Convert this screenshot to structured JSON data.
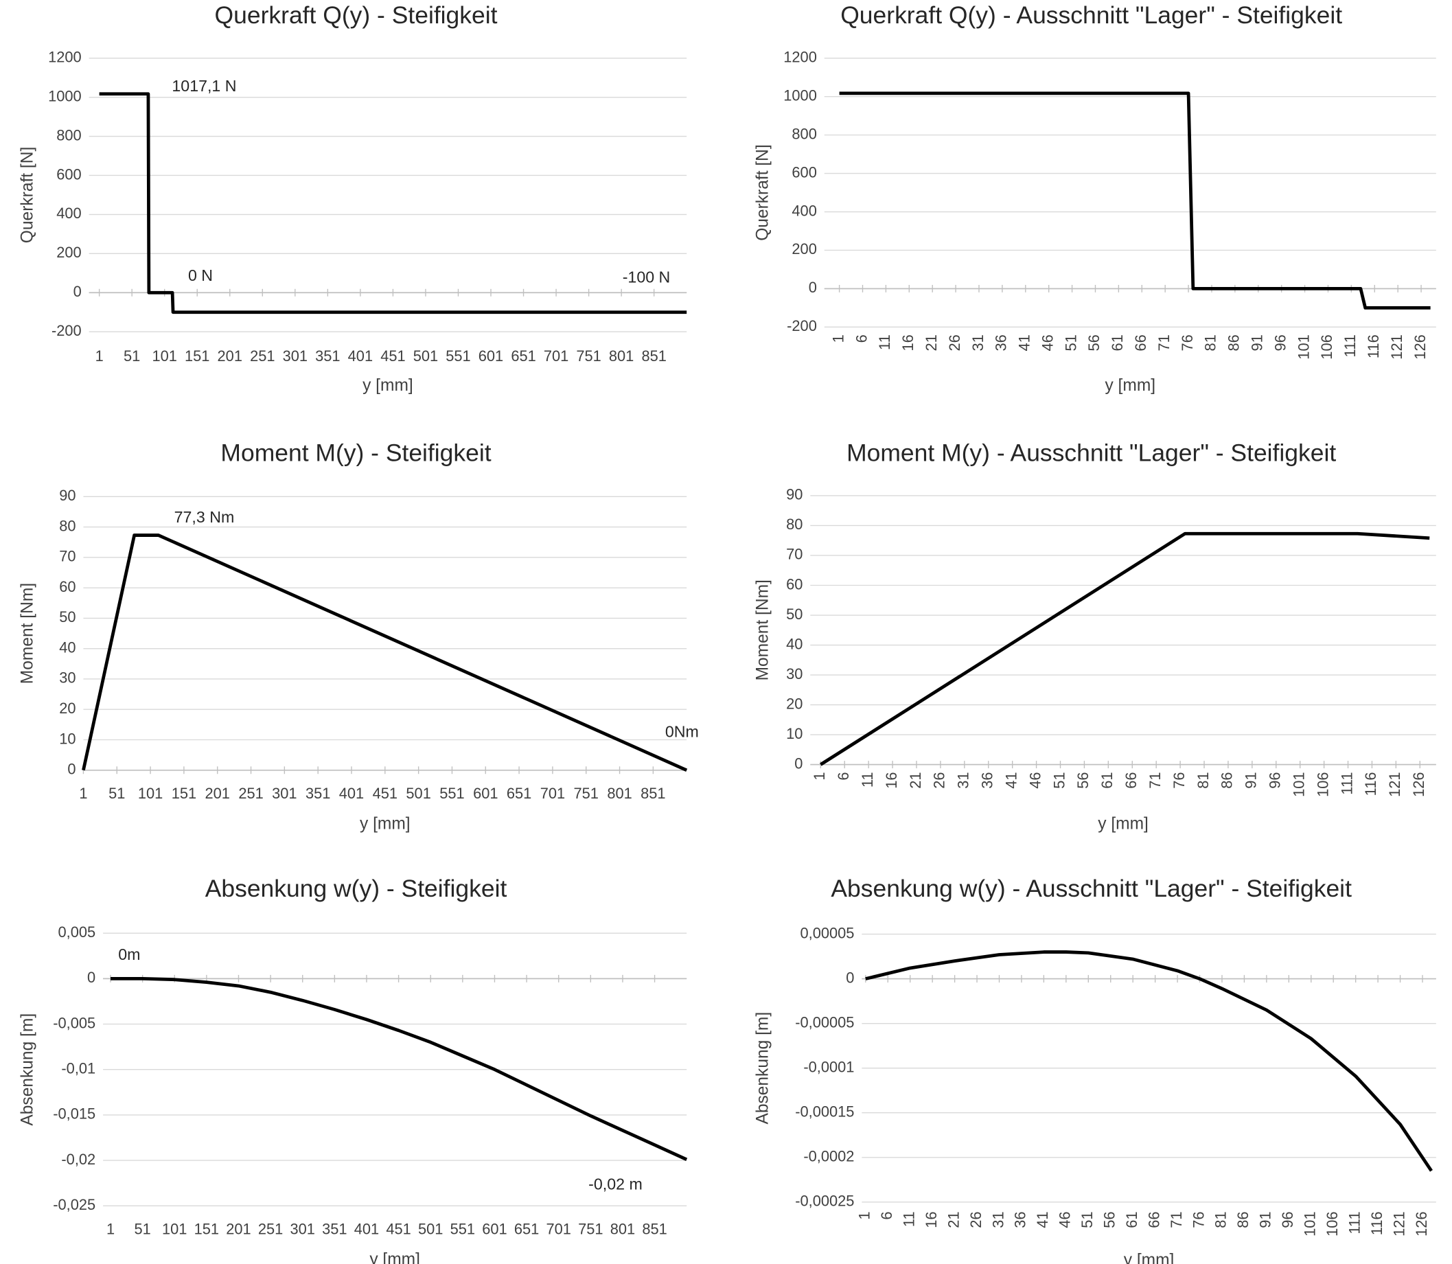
{
  "chart_data": [
    {
      "type": "line",
      "title": "Querkraft Q(y) - Steifigkeit",
      "x_label": "y [mm]",
      "y_label": "Querkraft [N]",
      "x": [
        1,
        76,
        77,
        113,
        114,
        901
      ],
      "values": [
        1017.1,
        1017.1,
        0,
        0,
        -100,
        -100
      ],
      "color": "#000000",
      "xlim": [
        1,
        901
      ],
      "xticks": [
        1,
        51,
        101,
        151,
        201,
        251,
        301,
        351,
        401,
        451,
        501,
        551,
        601,
        651,
        701,
        751,
        801,
        851
      ],
      "ylim": [
        -200,
        1200
      ],
      "yticks": [
        -200,
        0,
        200,
        400,
        600,
        800,
        1000,
        1200
      ],
      "grid": true,
      "annotations": [
        "1017,1 N",
        "0 N",
        "-100 N"
      ]
    },
    {
      "type": "line",
      "title": "Querkraft Q(y) - Ausschnitt \"Lager\" - Steifigkeit",
      "x_label": "y [mm]",
      "y_label": "Querkraft [N]",
      "x": [
        1,
        76,
        77,
        113,
        114,
        128
      ],
      "values": [
        1017.1,
        1017.1,
        0,
        0,
        -100,
        -100
      ],
      "color": "#000000",
      "xlim": [
        1,
        128
      ],
      "xticks": [
        1,
        6,
        11,
        16,
        21,
        26,
        31,
        36,
        41,
        46,
        51,
        56,
        61,
        66,
        71,
        76,
        81,
        86,
        91,
        96,
        101,
        106,
        111,
        116,
        121,
        126
      ],
      "ylim": [
        -200,
        1200
      ],
      "yticks": [
        -200,
        0,
        200,
        400,
        600,
        800,
        1000,
        1200
      ],
      "grid": true,
      "rotate_x_labels": true
    },
    {
      "type": "line",
      "title": "Moment M(y) - Steifigkeit",
      "x_label": "y [mm]",
      "y_label": "Moment [Nm]",
      "x": [
        1,
        77,
        113,
        901
      ],
      "values": [
        0,
        77.3,
        77.3,
        0
      ],
      "color": "#000000",
      "xlim": [
        1,
        901
      ],
      "xticks": [
        1,
        51,
        101,
        151,
        201,
        251,
        301,
        351,
        401,
        451,
        501,
        551,
        601,
        651,
        701,
        751,
        801,
        851
      ],
      "ylim": [
        0,
        90
      ],
      "yticks": [
        0,
        10,
        20,
        30,
        40,
        50,
        60,
        70,
        80,
        90
      ],
      "grid": true,
      "annotations": [
        "77,3 Nm",
        "0Nm"
      ]
    },
    {
      "type": "line",
      "title": "Moment M(y) - Ausschnitt \"Lager\" - Steifigkeit",
      "x_label": "y [mm]",
      "y_label": "Moment [Nm]",
      "x": [
        1,
        77,
        113,
        128
      ],
      "values": [
        0,
        77.3,
        77.3,
        75.8
      ],
      "color": "#000000",
      "xlim": [
        1,
        128
      ],
      "xticks": [
        1,
        6,
        11,
        16,
        21,
        26,
        31,
        36,
        41,
        46,
        51,
        56,
        61,
        66,
        71,
        76,
        81,
        86,
        91,
        96,
        101,
        106,
        111,
        116,
        121,
        126
      ],
      "ylim": [
        0,
        90
      ],
      "yticks": [
        0,
        10,
        20,
        30,
        40,
        50,
        60,
        70,
        80,
        90
      ],
      "grid": true,
      "rotate_x_labels": true
    },
    {
      "type": "line",
      "title": "Absenkung w(y) - Steifigkeit",
      "x_label": "y [mm]",
      "y_label": "Absenkung [m]",
      "x": [
        1,
        51,
        101,
        151,
        201,
        251,
        301,
        351,
        401,
        451,
        501,
        551,
        601,
        651,
        701,
        751,
        801,
        851,
        901
      ],
      "values": [
        0,
        0,
        -0.0001,
        -0.0004,
        -0.0008,
        -0.0015,
        -0.0024,
        -0.0034,
        -0.0045,
        -0.0057,
        -0.007,
        -0.0085,
        -0.01,
        -0.0117,
        -0.0134,
        -0.0151,
        -0.0167,
        -0.0183,
        -0.0199
      ],
      "color": "#000000",
      "xlim": [
        1,
        901
      ],
      "xticks": [
        1,
        51,
        101,
        151,
        201,
        251,
        301,
        351,
        401,
        451,
        501,
        551,
        601,
        651,
        701,
        751,
        801,
        851
      ],
      "ylim": [
        -0.025,
        0.005
      ],
      "yticks": [
        {
          "value": -0.025,
          "label": "-0,025"
        },
        {
          "value": -0.02,
          "label": "-0,02"
        },
        {
          "value": -0.015,
          "label": "-0,015"
        },
        {
          "value": -0.01,
          "label": "-0,01"
        },
        {
          "value": -0.005,
          "label": "-0,005"
        },
        0,
        {
          "value": 0.005,
          "label": "0,005"
        }
      ],
      "grid": true,
      "annotations": [
        "0m",
        "-0,02 m"
      ]
    },
    {
      "type": "line",
      "title": "Absenkung w(y) - Ausschnitt \"Lager\" - Steifigkeit",
      "x_label": "y [mm]",
      "y_label": "Absenkung [m]",
      "x": [
        1,
        11,
        21,
        31,
        41,
        46,
        51,
        61,
        71,
        76,
        81,
        91,
        101,
        111,
        121,
        128
      ],
      "values": [
        0,
        1.2e-05,
        2e-05,
        2.7e-05,
        3e-05,
        3e-05,
        2.9e-05,
        2.2e-05,
        9e-06,
        0,
        -1.1e-05,
        -3.5e-05,
        -6.7e-05,
        -0.000109,
        -0.000163,
        -0.000215
      ],
      "color": "#000000",
      "xlim": [
        1,
        128
      ],
      "xticks": [
        1,
        6,
        11,
        16,
        21,
        26,
        31,
        36,
        41,
        46,
        51,
        56,
        61,
        66,
        71,
        76,
        81,
        86,
        91,
        96,
        101,
        106,
        111,
        116,
        121,
        126
      ],
      "ylim": [
        -0.00025,
        5e-05
      ],
      "yticks": [
        {
          "value": -0.00025,
          "label": "-0,00025"
        },
        {
          "value": -0.0002,
          "label": "-0,0002"
        },
        {
          "value": -0.00015,
          "label": "-0,00015"
        },
        {
          "value": -0.0001,
          "label": "-0,0001"
        },
        {
          "value": -5e-05,
          "label": "-0,00005"
        },
        0,
        {
          "value": 5e-05,
          "label": "0,00005"
        }
      ],
      "grid": true,
      "rotate_x_labels": true
    }
  ]
}
